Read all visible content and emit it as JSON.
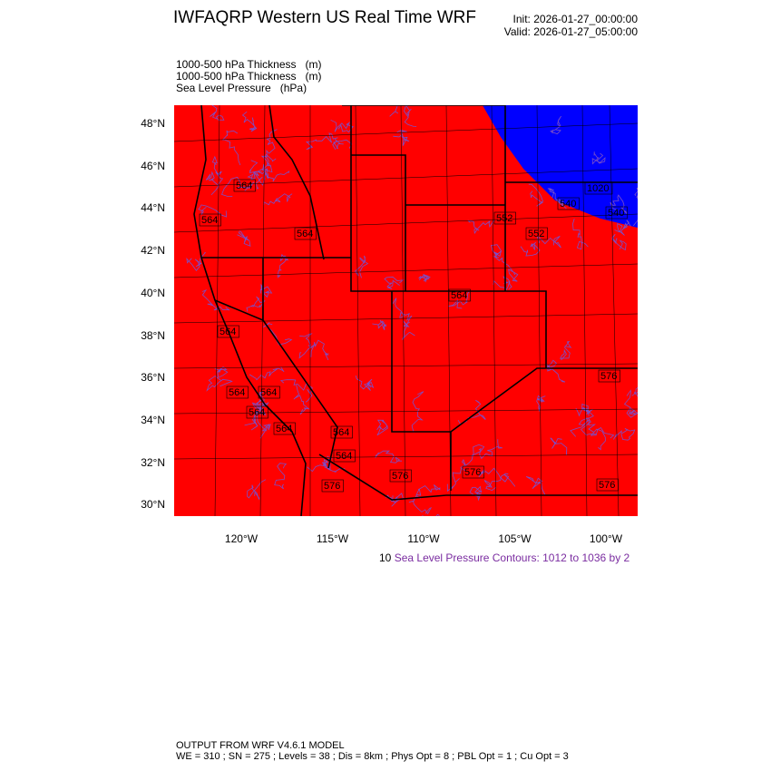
{
  "title": "IWFAQRP Western US Real Time WRF",
  "init": "Init: 2026-01-27_00:00:00",
  "valid": "Valid: 2026-01-27_05:00:00",
  "fields": [
    "1000-500 hPa Thickness   (m)",
    "1000-500 hPa Thickness   (m)",
    "Sea Level Pressure   (hPa)"
  ],
  "map": {
    "lat_labels": [
      "48°N",
      "46°N",
      "44°N",
      "42°N",
      "40°N",
      "38°N",
      "36°N",
      "34°N",
      "32°N",
      "30°N"
    ],
    "lon_labels": [
      "120°W",
      "115°W",
      "110°W",
      "105°W",
      "100°W"
    ],
    "colors": {
      "warm_fill": "#ff0000",
      "cold_fill": "#0000ff",
      "slp_contours": "#7a4fc8",
      "borders": "#000000"
    },
    "contour_labels": [
      "564",
      "564",
      "564",
      "552",
      "552",
      "540",
      "540",
      "1020",
      "564",
      "564",
      "564",
      "564",
      "564",
      "564",
      "564",
      "564",
      "576",
      "576",
      "576",
      "576",
      "576"
    ]
  },
  "contour_info": {
    "prefix": "10",
    "text": "Sea Level Pressure Contours: 1012 to 1036 by 2"
  },
  "footer": [
    "OUTPUT FROM WRF V4.6.1 MODEL",
    "WE = 310 ; SN = 275 ; Levels = 38 ; Dis = 8km ; Phys Opt = 8 ; PBL Opt = 1 ; Cu Opt = 3"
  ]
}
